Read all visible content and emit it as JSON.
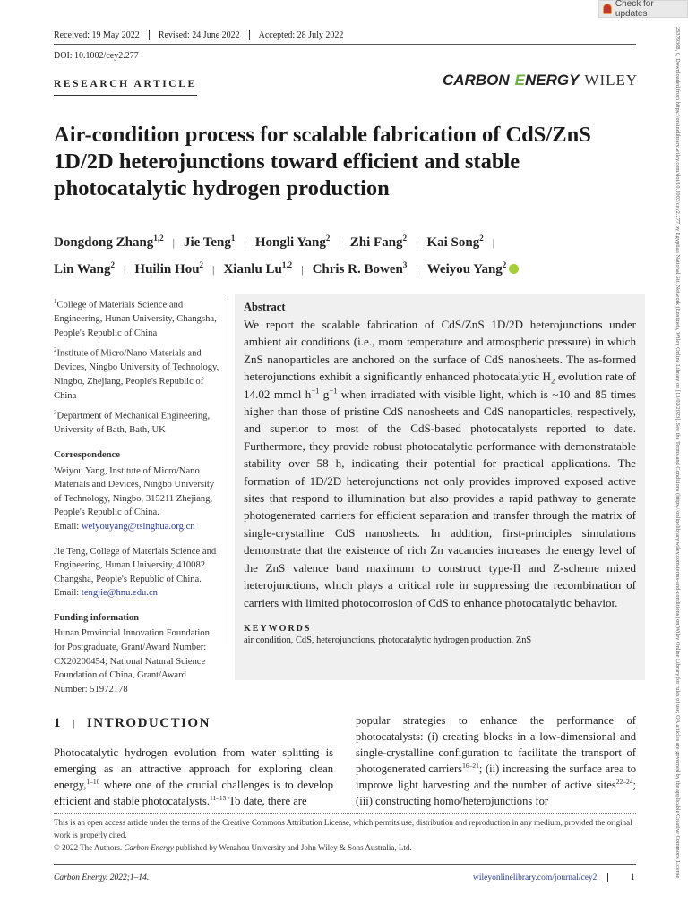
{
  "check_updates": "Check for updates",
  "header": {
    "received": "Received: 19 May 2022",
    "revised": "Revised: 24 June 2022",
    "accepted": "Accepted: 28 July 2022",
    "doi": "DOI: 10.1002/cey2.277",
    "article_type": "RESEARCH ARTICLE",
    "logo": {
      "carbon": "CARBON",
      "energy_first": "E",
      "energy_rest": "NERGY",
      "wiley": "WILEY"
    }
  },
  "title": "Air-condition process for scalable fabrication of CdS/ZnS 1D/2D heterojunctions toward efficient and stable photocatalytic hydrogen production",
  "authors": [
    {
      "name": "Dongdong Zhang",
      "sup": "1,2"
    },
    {
      "name": "Jie Teng",
      "sup": "1"
    },
    {
      "name": "Hongli Yang",
      "sup": "2"
    },
    {
      "name": "Zhi Fang",
      "sup": "2"
    },
    {
      "name": "Kai Song",
      "sup": "2"
    },
    {
      "name": "Lin Wang",
      "sup": "2"
    },
    {
      "name": "Huilin Hou",
      "sup": "2"
    },
    {
      "name": "Xianlu Lu",
      "sup": "1,2"
    },
    {
      "name": "Chris R. Bowen",
      "sup": "3"
    },
    {
      "name": "Weiyou Yang",
      "sup": "2",
      "orcid": true
    }
  ],
  "affiliations": [
    {
      "sup": "1",
      "text": "College of Materials Science and Engineering, Hunan University, Changsha, People's Republic of China"
    },
    {
      "sup": "2",
      "text": "Institute of Micro/Nano Materials and Devices, Ningbo University of Technology, Ningbo, Zhejiang, People's Republic of China"
    },
    {
      "sup": "3",
      "text": "Department of Mechanical Engineering, University of Bath, Bath, UK"
    }
  ],
  "correspondence": {
    "heading": "Correspondence",
    "entries": [
      {
        "text": "Weiyou Yang, Institute of Micro/Nano Materials and Devices, Ningbo University of Technology, Ningbo, 315211 Zhejiang, People's Republic of China.",
        "email_label": "Email: ",
        "email": "weiyouyang@tsinghua.org.cn"
      },
      {
        "text": "Jie Teng, College of Materials Science and Engineering, Hunan University, 410082 Changsha, People's Republic of China.",
        "email_label": "Email: ",
        "email": "tengjie@hnu.edu.cn"
      }
    ]
  },
  "funding": {
    "heading": "Funding information",
    "text": "Hunan Provincial Innovation Foundation for Postgraduate, Grant/Award Number: CX20200454; National Natural Science Foundation of China, Grant/Award Number: 51972178"
  },
  "abstract": {
    "heading": "Abstract",
    "p1": "We report the scalable fabrication of CdS/ZnS 1D/2D heterojunctions under ambient air conditions (i.e., room temperature and atmospheric pressure) in which ZnS nanoparticles are anchored on the surface of CdS nanosheets. The as-formed heterojunctions exhibit a significantly enhanced photocatalytic H",
    "sub1": "2",
    "p2": " evolution rate of 14.02 mmol h",
    "sup1": "−1",
    "p3": " g",
    "sup2": "−1",
    "p4": " when irradiated with visible light, which is ~10 and 85 times higher than those of pristine CdS nanosheets and CdS nanoparticles, respectively, and superior to most of the CdS-based photocatalysts reported to date. Furthermore, they provide robust photocatalytic performance with demonstratable stability over 58 h, indicating their potential for practical applications. The formation of 1D/2D heterojunctions not only provides improved exposed active sites that respond to illumination but also provides a rapid pathway to generate photogenerated carriers for efficient separation and transfer through the matrix of single-crystalline CdS nanosheets. In addition, first-principles simulations demonstrate that the existence of rich Zn vacancies increases the energy level of the ZnS valence band maximum to construct type-II and Z-scheme mixed heterojunctions, which plays a critical role in suppressing the recombination of carriers with limited photocorrosion of CdS to enhance photocatalytic behavior.",
    "keywords_heading": "KEYWORDS",
    "keywords": "air condition, CdS, heterojunctions, photocatalytic hydrogen production, ZnS"
  },
  "introduction": {
    "number": "1",
    "heading": "INTRODUCTION",
    "col1": [
      {
        "t": "Photocatalytic hydrogen evolution from water splitting is emerging as an attractive approach for exploring clean energy,"
      },
      {
        "sup": "1–10"
      },
      {
        "t": " where one of the crucial challenges is to develop efficient and stable photocatalysts."
      },
      {
        "sup": "11–15"
      },
      {
        "t": " To date, there are"
      }
    ],
    "col2": [
      {
        "t": "popular strategies to enhance the performance of photocatalysts: (i) creating blocks in a low-dimensional and single-crystalline configuration to facilitate the transport of photogenerated carriers"
      },
      {
        "sup": "16–21"
      },
      {
        "t": "; (ii) increasing the surface area to improve light harvesting and the number of active sites"
      },
      {
        "sup": "22–24"
      },
      {
        "t": "; (iii) constructing homo/heterojunctions for"
      }
    ]
  },
  "license": {
    "line1": "This is an open access article under the terms of the Creative Commons Attribution License, which permits use, distribution and reproduction in any medium, provided the original work is properly cited.",
    "copyright_pre": "© 2022 The Authors. ",
    "journal_italic": "Carbon Energy",
    "copyright_post": " published by Wenzhou University and John Wiley & Sons Australia, Ltd."
  },
  "footer": {
    "journal": "Carbon Energy. 2022;1–14.",
    "url": "wileyonlinelibrary.com/journal/cey2",
    "page": "1"
  },
  "side_note": "26379368, 0, Downloaded from https://onlinelibrary.wiley.com/doi/10.1002/cey2.277 by Egyptian National Sti. Network (Enstinet), Wiley Online Library on [13/02/2023]. See the Terms and Conditions (https://onlinelibrary.wiley.com/terms-and-conditions) on Wiley Online Library for rules of use; OA articles are governed by the applicable Creative Commons License",
  "colors": {
    "orcid": "#a6ce39",
    "link": "#2b3d8f",
    "abstract_bg": "#f0f0f0",
    "logo_accent": "#6cb33f"
  }
}
